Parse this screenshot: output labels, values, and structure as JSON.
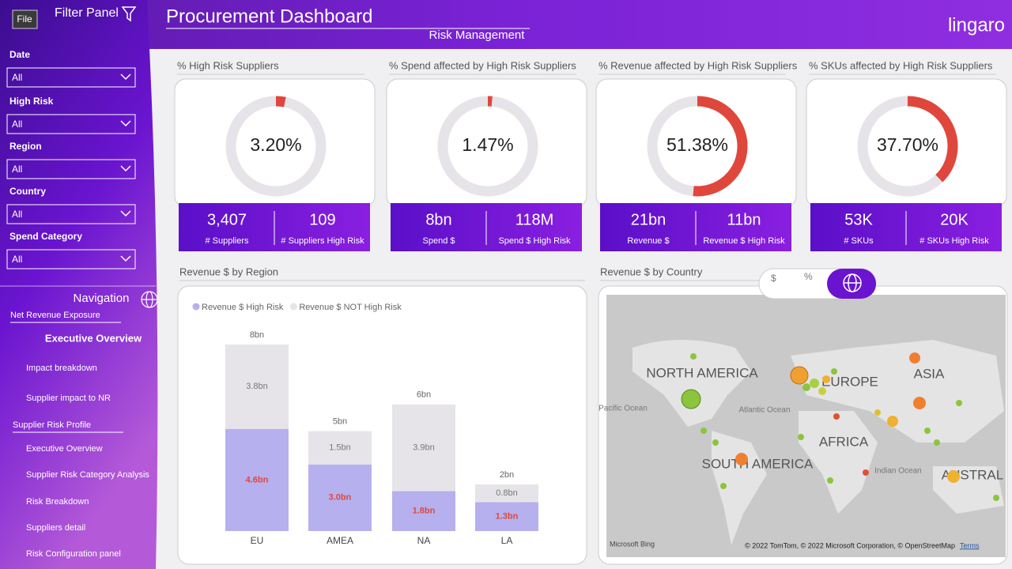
{
  "header": {
    "file_button": "File",
    "filter_title": "Filter Panel",
    "title": "Procurement Dashboard",
    "subtitle": "Risk Management",
    "logo": "lingaro"
  },
  "filters": [
    {
      "label": "Date",
      "value": "All"
    },
    {
      "label": "High Risk",
      "value": "All"
    },
    {
      "label": "Region",
      "value": "All"
    },
    {
      "label": "Country",
      "value": "All"
    },
    {
      "label": "Spend Category",
      "value": "All"
    }
  ],
  "navigation": {
    "title": "Navigation",
    "sections": [
      {
        "title": "Net Revenue Exposure",
        "items": [
          "Executive Overview",
          "Impact breakdown",
          "Supplier impact to NR"
        ]
      },
      {
        "title": "Supplier Risk Profile",
        "items": [
          "Executive Overview",
          "Supplier Risk Category Analysis",
          "Risk Breakdown",
          "Suppliers detail",
          "Risk Configuration panel"
        ]
      }
    ]
  },
  "kpis": [
    {
      "title": "% High Risk Suppliers",
      "value": 3.2,
      "value_label": "3.20%",
      "stats": [
        {
          "value": "3,407",
          "label": "# Suppliers"
        },
        {
          "value": "109",
          "label": "# Suppliers High Risk"
        }
      ]
    },
    {
      "title": "% Spend affected by High Risk Suppliers",
      "value": 1.47,
      "value_label": "1.47%",
      "stats": [
        {
          "value": "8bn",
          "label": "Spend $"
        },
        {
          "value": "118M",
          "label": "Spend $ High Risk"
        }
      ]
    },
    {
      "title": "% Revenue affected by High Risk Suppliers",
      "value": 51.38,
      "value_label": "51.38%",
      "stats": [
        {
          "value": "21bn",
          "label": "Revenue $"
        },
        {
          "value": "11bn",
          "label": "Revenue $ High Risk"
        }
      ]
    },
    {
      "title": "% SKUs affected by High Risk Suppliers",
      "value": 37.7,
      "value_label": "37.70%",
      "stats": [
        {
          "value": "53K",
          "label": "# SKUs"
        },
        {
          "value": "20K",
          "label": "# SKUs High Risk"
        }
      ]
    }
  ],
  "chart_data": {
    "type": "bar",
    "title": "Revenue $ by Region",
    "categories": [
      "EU",
      "AMEA",
      "NA",
      "LA"
    ],
    "ylim": [
      0,
      9.5
    ],
    "series": [
      {
        "name": "Revenue $ High Risk",
        "color": "#b6b0ee",
        "values": [
          4.6,
          3.0,
          1.8,
          1.3
        ],
        "value_labels": [
          "4.6bn",
          "3.0bn",
          "1.8bn",
          "1.3bn"
        ]
      },
      {
        "name": "Revenue $ NOT High Risk",
        "color": "#e6e4e8",
        "values": [
          3.8,
          1.5,
          3.9,
          0.8
        ],
        "value_labels": [
          "3.8bn",
          "1.5bn",
          "3.9bn",
          "0.8bn"
        ]
      }
    ],
    "totals": [
      8.4,
      4.5,
      5.7,
      2.1
    ],
    "total_labels": [
      "8bn",
      "5bn",
      "6bn",
      "2bn"
    ]
  },
  "map": {
    "title": "Revenue $ by Country",
    "toggles": [
      "$",
      "%"
    ],
    "labels": [
      "NORTH AMERICA",
      "EUROPE",
      "ASIA",
      "AFRICA",
      "SOUTH AMERICA",
      "AUSTRAL",
      "Pacific Ocean",
      "Atlantic Ocean",
      "Indian Ocean"
    ],
    "brand": "Microsoft Bing",
    "copyright": "© 2022 TomTom, © 2022 Microsoft Corporation, © OpenStreetMap",
    "terms": "Terms"
  }
}
